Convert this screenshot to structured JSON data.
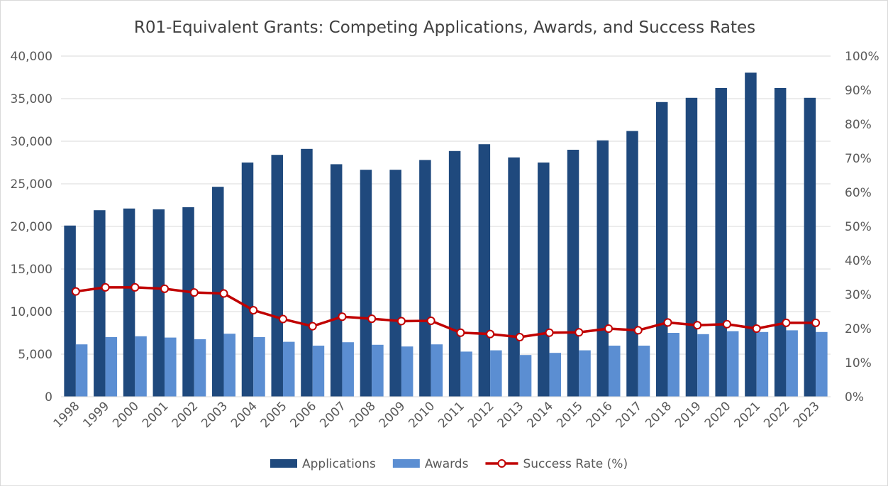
{
  "chart_data": {
    "type": "bar",
    "title": "R01-Equivalent Grants: Competing Applications, Awards, and Success Rates",
    "categories": [
      "1998",
      "1999",
      "2000",
      "2001",
      "2002",
      "2003",
      "2004",
      "2005",
      "2006",
      "2007",
      "2008",
      "2009",
      "2010",
      "2011",
      "2012",
      "2013",
      "2014",
      "2015",
      "2016",
      "2017",
      "2018",
      "2019",
      "2020",
      "2021",
      "2022",
      "2023"
    ],
    "series": [
      {
        "name": "Applications",
        "kind": "bar",
        "axis": "left",
        "color": "#1f497d",
        "values": [
          20100,
          21900,
          22100,
          22000,
          22250,
          24650,
          27500,
          28400,
          29100,
          27300,
          26650,
          26650,
          27800,
          28850,
          29650,
          28100,
          27500,
          29000,
          30100,
          31200,
          34600,
          35100,
          36250,
          38050,
          36250,
          35100
        ]
      },
      {
        "name": "Awards",
        "kind": "bar",
        "axis": "left",
        "color": "#5b8ed2",
        "values": [
          6150,
          7000,
          7100,
          6950,
          6750,
          7400,
          7000,
          6450,
          6000,
          6400,
          6100,
          5900,
          6150,
          5300,
          5450,
          4900,
          5150,
          5450,
          6000,
          6000,
          7500,
          7350,
          7700,
          7600,
          7800,
          7600
        ]
      },
      {
        "name": "Success Rate (%)",
        "kind": "line",
        "axis": "right",
        "color": "#c00000",
        "values": [
          30.9,
          32.1,
          32.1,
          31.7,
          30.6,
          30.3,
          25.4,
          22.8,
          20.7,
          23.5,
          22.9,
          22.2,
          22.3,
          18.8,
          18.4,
          17.5,
          18.8,
          18.9,
          20.0,
          19.5,
          21.8,
          21.0,
          21.3,
          20.0,
          21.7,
          21.7
        ]
      }
    ],
    "ylim": [
      0,
      40000
    ],
    "y_ticks": [
      "0",
      "5,000",
      "10,000",
      "15,000",
      "20,000",
      "25,000",
      "30,000",
      "35,000",
      "40,000"
    ],
    "y2lim": [
      0,
      100
    ],
    "y2_ticks": [
      "0%",
      "10%",
      "20%",
      "30%",
      "40%",
      "50%",
      "60%",
      "70%",
      "80%",
      "90%",
      "100%"
    ],
    "grid": "horizontal",
    "legend": "bottom-center"
  }
}
